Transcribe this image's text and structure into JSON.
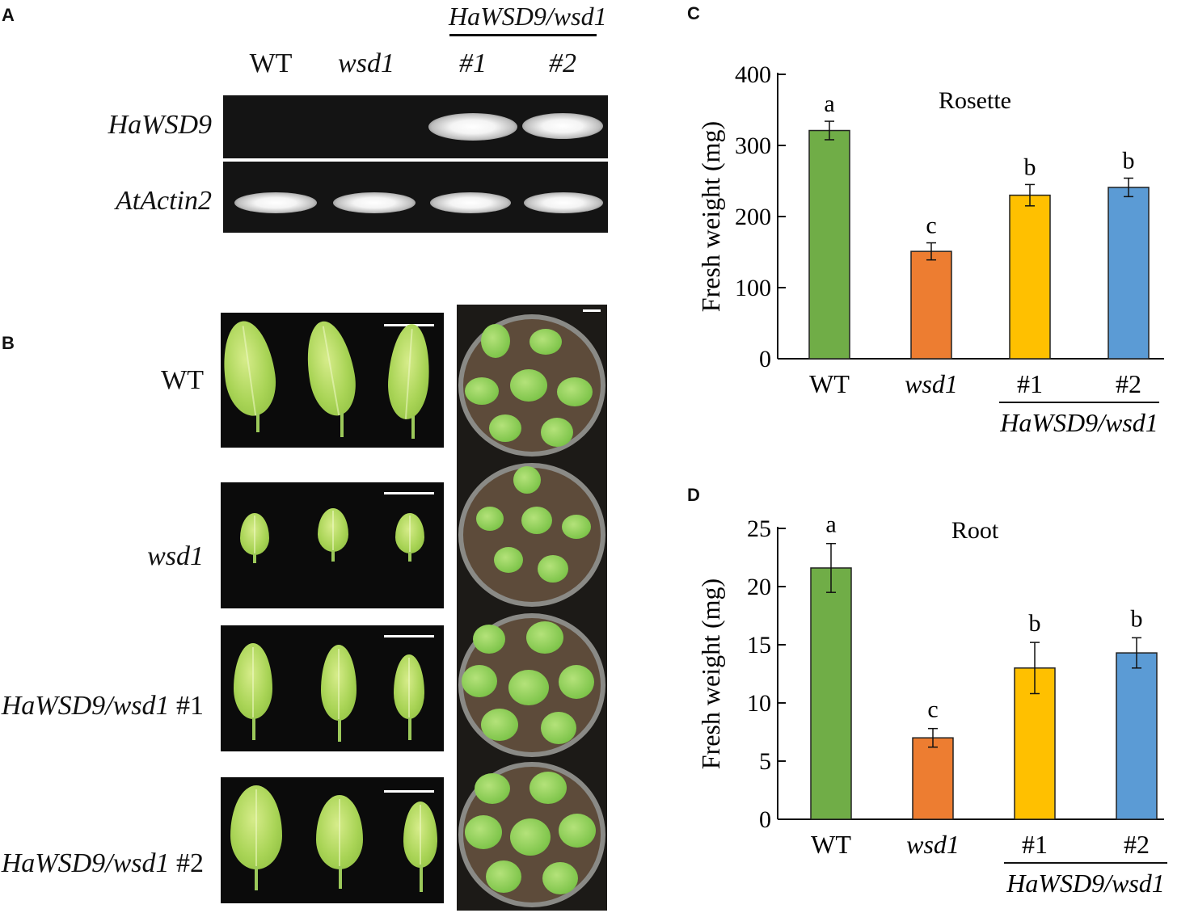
{
  "panels": {
    "a": {
      "letter": "A",
      "header": "HaWSD9/wsd1",
      "lanes": [
        "WT",
        "wsd1",
        "#1",
        "#2"
      ],
      "genes": [
        "HaWSD9",
        "AtActin2"
      ]
    },
    "b": {
      "letter": "B",
      "rows": [
        "WT",
        "wsd1",
        "HaWSD9/wsd1 #1",
        "HaWSD9/wsd1 #2"
      ],
      "rows_prefix": [
        "",
        "",
        "HaWSD9/wsd1",
        "HaWSD9/wsd1"
      ],
      "rows_suffix": [
        "WT",
        "wsd1",
        " #1",
        " #2"
      ]
    },
    "c": {
      "letter": "C"
    },
    "d": {
      "letter": "D"
    }
  },
  "chart_data": [
    {
      "type": "bar",
      "panel": "C",
      "title": "Rosette",
      "ylabel": "Fresh weight (mg)",
      "categories": [
        "WT",
        "wsd1",
        "#1",
        "#2"
      ],
      "group_label": "HaWSD9/wsd1",
      "values": [
        321,
        151,
        230,
        241
      ],
      "errors": [
        13,
        12,
        15,
        13
      ],
      "letters": [
        "a",
        "c",
        "b",
        "b"
      ],
      "colors": [
        "#70ad47",
        "#ed7d31",
        "#ffc000",
        "#5b9bd5"
      ],
      "ylim": [
        0,
        400
      ],
      "yticks": [
        0,
        100,
        200,
        300,
        400
      ]
    },
    {
      "type": "bar",
      "panel": "D",
      "title": "Root",
      "ylabel": "Fresh weight (mg)",
      "categories": [
        "WT",
        "wsd1",
        "#1",
        "#2"
      ],
      "group_label": "HaWSD9/wsd1",
      "values": [
        21.6,
        7.0,
        13.0,
        14.3
      ],
      "errors": [
        2.1,
        0.8,
        2.2,
        1.3
      ],
      "letters": [
        "a",
        "c",
        "b",
        "b"
      ],
      "colors": [
        "#70ad47",
        "#ed7d31",
        "#ffc000",
        "#5b9bd5"
      ],
      "ylim": [
        0,
        25
      ],
      "yticks": [
        0,
        5,
        10,
        15,
        20,
        25
      ]
    }
  ]
}
